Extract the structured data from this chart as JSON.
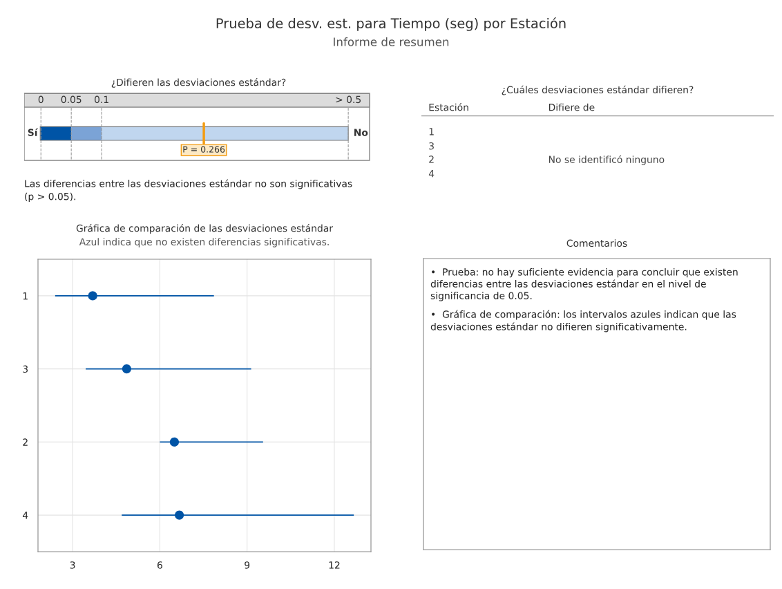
{
  "chart_data": [
    {
      "type": "other",
      "title": "Prueba de desv. est. para Tiempo (seg) por Estación",
      "subtitle": "Informe de resumen"
    },
    {
      "type": "other",
      "title": "¿Difieren las desviaciones estándar?",
      "annotations": [
        "0",
        "0.05",
        "0.1",
        "> 0.5",
        "Sí",
        "No",
        "P = 0.266",
        "Las diferencias entre las desviaciones estándar no son significativas\n(p > 0.05)."
      ]
    },
    {
      "type": "other",
      "title": "¿Cuáles desviaciones estándar difieren?",
      "annotations": [
        "Estación",
        "Difiere de",
        "1",
        "3",
        "2",
        "4",
        "No se identificó ninguno"
      ]
    },
    {
      "type": "scatter",
      "title": "Gráfica de comparación de las desviaciones estándar",
      "subtitle": "Azul indica que no existen diferencias significativas.",
      "orientation": "horizontal",
      "categories": [
        "1",
        "3",
        "2",
        "4"
      ],
      "series": [
        {
          "color": "#0054a6",
          "values": [
            3.69,
            4.86,
            6.5,
            6.67
          ],
          "errors": [
            [
              2.4,
              7.86
            ],
            [
              3.45,
              9.14
            ],
            [
              6.0,
              9.55
            ],
            [
              4.69,
              12.67
            ]
          ]
        }
      ],
      "xlim": [
        1.81,
        13.26
      ],
      "xticks": [
        3,
        6,
        9,
        12
      ],
      "grid": true,
      "marker": "circle"
    },
    {
      "type": "other",
      "title": "Comentarios",
      "annotations": [
        "•  Prueba: no hay suficiente evidencia para concluir que existen\ndiferencias entre las desviaciones estándar en el nivel de\nsignificancia de 0.05.",
        "•  Gráfica de comparación: los intervalos azules indican que las\ndesviaciones estándar no difieren significativamente."
      ]
    }
  ]
}
